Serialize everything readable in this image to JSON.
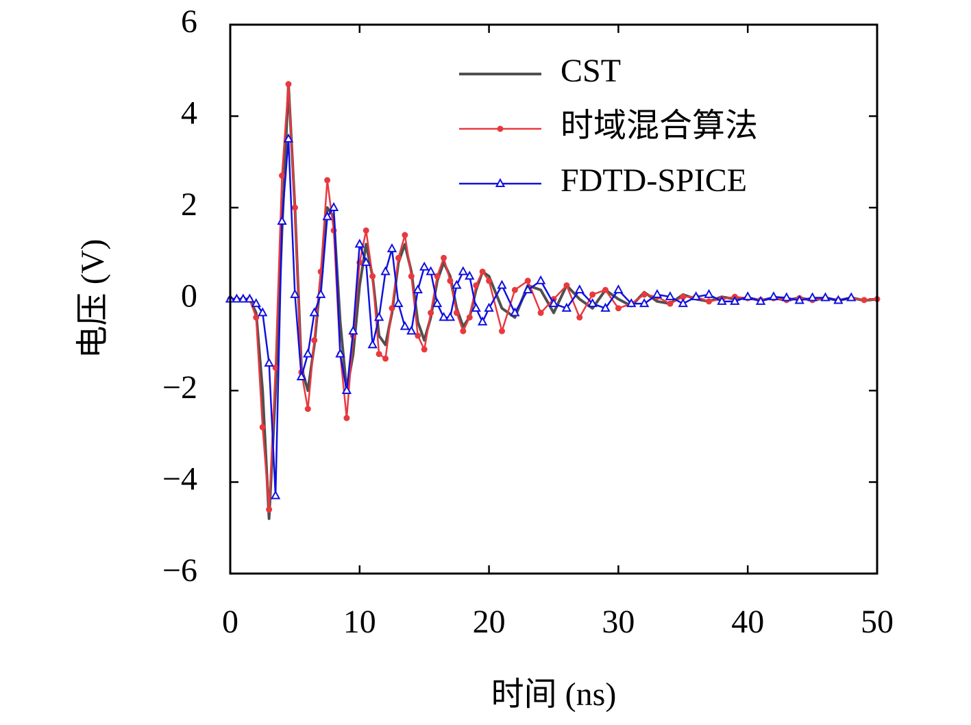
{
  "chart_data": {
    "type": "line",
    "xlabel": "时间 (ns)",
    "ylabel": "电压 (V)",
    "x": [
      0,
      0.5,
      1,
      1.5,
      2,
      2.5,
      3,
      3.5,
      4,
      4.5,
      5,
      5.5,
      6,
      6.5,
      7,
      7.5,
      8,
      8.5,
      9,
      9.5,
      10,
      10.5,
      11,
      11.5,
      12,
      12.5,
      13,
      13.5,
      14,
      14.5,
      15,
      15.5,
      16,
      16.5,
      17,
      17.5,
      18,
      18.5,
      19,
      19.5,
      20,
      21,
      22,
      23,
      24,
      25,
      26,
      27,
      28,
      29,
      30,
      31,
      32,
      33,
      34,
      35,
      36,
      37,
      38,
      39,
      40,
      41,
      42,
      43,
      44,
      45,
      46,
      47,
      48,
      49,
      50
    ],
    "series": [
      {
        "name": "CST",
        "color": "#505050",
        "marker": "none",
        "values": [
          0,
          0,
          0,
          0,
          -0.3,
          -2,
          -4.8,
          -2,
          1.5,
          4.7,
          2,
          -1.5,
          -2,
          -1,
          0.5,
          2,
          1.8,
          -0.5,
          -2,
          -1.2,
          0.3,
          1.2,
          0.5,
          -0.8,
          -1,
          -0.3,
          0.8,
          1.2,
          0.6,
          -0.5,
          -0.9,
          -0.4,
          0.4,
          0.8,
          0.5,
          -0.2,
          -0.6,
          -0.4,
          0.2,
          0.6,
          0.5,
          -0.2,
          -0.4,
          0.3,
          0.2,
          -0.3,
          0.3,
          0,
          -0.2,
          0.2,
          0,
          -0.15,
          0.15,
          -0.05,
          -0.1,
          0.1,
          0,
          -0.05,
          0.05,
          0,
          0.03,
          -0.03,
          0.03,
          -0.03,
          0.03,
          -0.03,
          0.03,
          -0.03,
          0.03,
          -0.03,
          0
        ]
      },
      {
        "name": "时域混合算法",
        "color": "#e8393e",
        "marker": "circle",
        "values": [
          0,
          0,
          0,
          0,
          -0.4,
          -2.8,
          -4.6,
          -1.5,
          2.7,
          4.7,
          2,
          -1.6,
          -2.4,
          -0.9,
          0.6,
          2.6,
          1.5,
          -1.2,
          -2.6,
          -0.8,
          0.8,
          1.5,
          0.5,
          -1.2,
          -1.3,
          -0.2,
          0.9,
          1.4,
          0.5,
          -0.8,
          -1.1,
          -0.3,
          0.5,
          0.9,
          0.4,
          -0.3,
          -0.7,
          -0.4,
          0.3,
          0.6,
          0.4,
          -0.7,
          0.2,
          0.4,
          -0.3,
          0,
          0.3,
          -0.4,
          0.1,
          0.2,
          -0.2,
          -0.1,
          0.1,
          0.05,
          -0.1,
          0.05,
          0.05,
          -0.05,
          0,
          0.05,
          0.02,
          -0.02,
          0.02,
          -0.02,
          0.02,
          -0.02,
          0.02,
          -0.02,
          0.02,
          -0.02,
          0
        ]
      },
      {
        "name": "FDTD-SPICE",
        "color": "#1010e0",
        "marker": "triangle",
        "values": [
          0,
          0,
          0,
          0,
          -0.1,
          -0.3,
          -1.4,
          -4.3,
          1.7,
          3.5,
          0.1,
          -1.7,
          -1.2,
          -0.3,
          0.1,
          1.8,
          2,
          -1.2,
          -2,
          -0.7,
          1.2,
          0.8,
          -1,
          -0.4,
          0.6,
          1.1,
          -0.1,
          -0.6,
          -0.7,
          0.2,
          0.7,
          0.6,
          -0.1,
          -0.4,
          -0.4,
          0.3,
          0.6,
          0.5,
          -0.2,
          -0.5,
          -0.2,
          0.3,
          -0.3,
          0.2,
          0.4,
          -0.1,
          -0.2,
          0.2,
          -0.1,
          -0.2,
          0.2,
          -0.1,
          -0.1,
          0.1,
          0.05,
          -0.1,
          0.05,
          0.1,
          -0.05,
          -0.05,
          0.05,
          -0.05,
          0.05,
          0.03,
          -0.03,
          0.03,
          0.03,
          -0.03,
          0.03,
          null,
          null
        ]
      }
    ],
    "xlim": [
      0,
      50
    ],
    "ylim": [
      -6,
      6
    ],
    "xticks": [
      0,
      10,
      20,
      30,
      40,
      50
    ],
    "yticks": [
      {
        "value": -6,
        "label": "−6"
      },
      {
        "value": -4,
        "label": "−4"
      },
      {
        "value": -2,
        "label": "−2"
      },
      0,
      2,
      4,
      6
    ],
    "grid": false,
    "legend": "upper right"
  }
}
